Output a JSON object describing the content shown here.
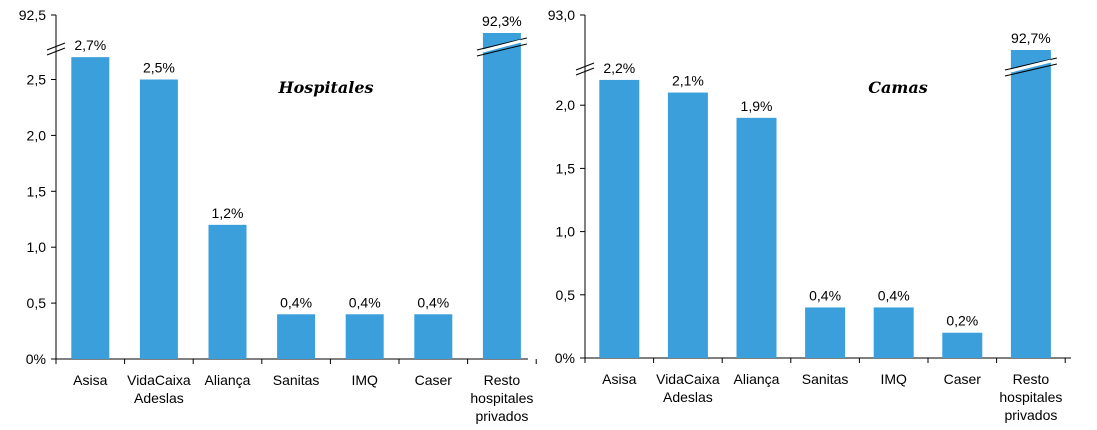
{
  "chart_data": [
    {
      "type": "bar",
      "title": "Hospitales",
      "categories": [
        [
          "Asisa"
        ],
        [
          "VidaCaixa",
          "Adeslas"
        ],
        [
          "Aliança"
        ],
        [
          "Sanitas"
        ],
        [
          "IMQ"
        ],
        [
          "Caser"
        ],
        [
          "Resto",
          "hospitales",
          "privados"
        ]
      ],
      "values": [
        2.7,
        2.5,
        1.2,
        0.4,
        0.4,
        0.4,
        92.3
      ],
      "data_labels": [
        "2,7%",
        "2,5%",
        "1,2%",
        "0,4%",
        "0,4%",
        "0,4%",
        "92,3%"
      ],
      "yticks": [
        "0%",
        "0,5",
        "1,0",
        "1,5",
        "2,0",
        "2,5"
      ],
      "ytick_values": [
        0,
        0.5,
        1.0,
        1.5,
        2.0,
        2.5
      ],
      "axis_break_label": "92,5",
      "ylim": [
        0,
        2.8
      ],
      "broken_axis": true,
      "color": "#3b9fdb"
    },
    {
      "type": "bar",
      "title": "Camas",
      "categories": [
        [
          "Asisa"
        ],
        [
          "VidaCaixa",
          "Adeslas"
        ],
        [
          "Aliança"
        ],
        [
          "Sanitas"
        ],
        [
          "IMQ"
        ],
        [
          "Caser"
        ],
        [
          "Resto",
          "hospitales",
          "privados"
        ]
      ],
      "values": [
        2.2,
        2.1,
        1.9,
        0.4,
        0.4,
        0.2,
        92.7
      ],
      "data_labels": [
        "2,2%",
        "2,1%",
        "1,9%",
        "0,4%",
        "0,4%",
        "0,2%",
        "92,7%"
      ],
      "yticks": [
        "0%",
        "0,5",
        "1,0",
        "1,5",
        "2,0"
      ],
      "ytick_values": [
        0,
        0.5,
        1.0,
        1.5,
        2.0
      ],
      "axis_break_label": "93,0",
      "ylim": [
        0,
        2.25
      ],
      "broken_axis": true,
      "color": "#3b9fdb"
    }
  ]
}
